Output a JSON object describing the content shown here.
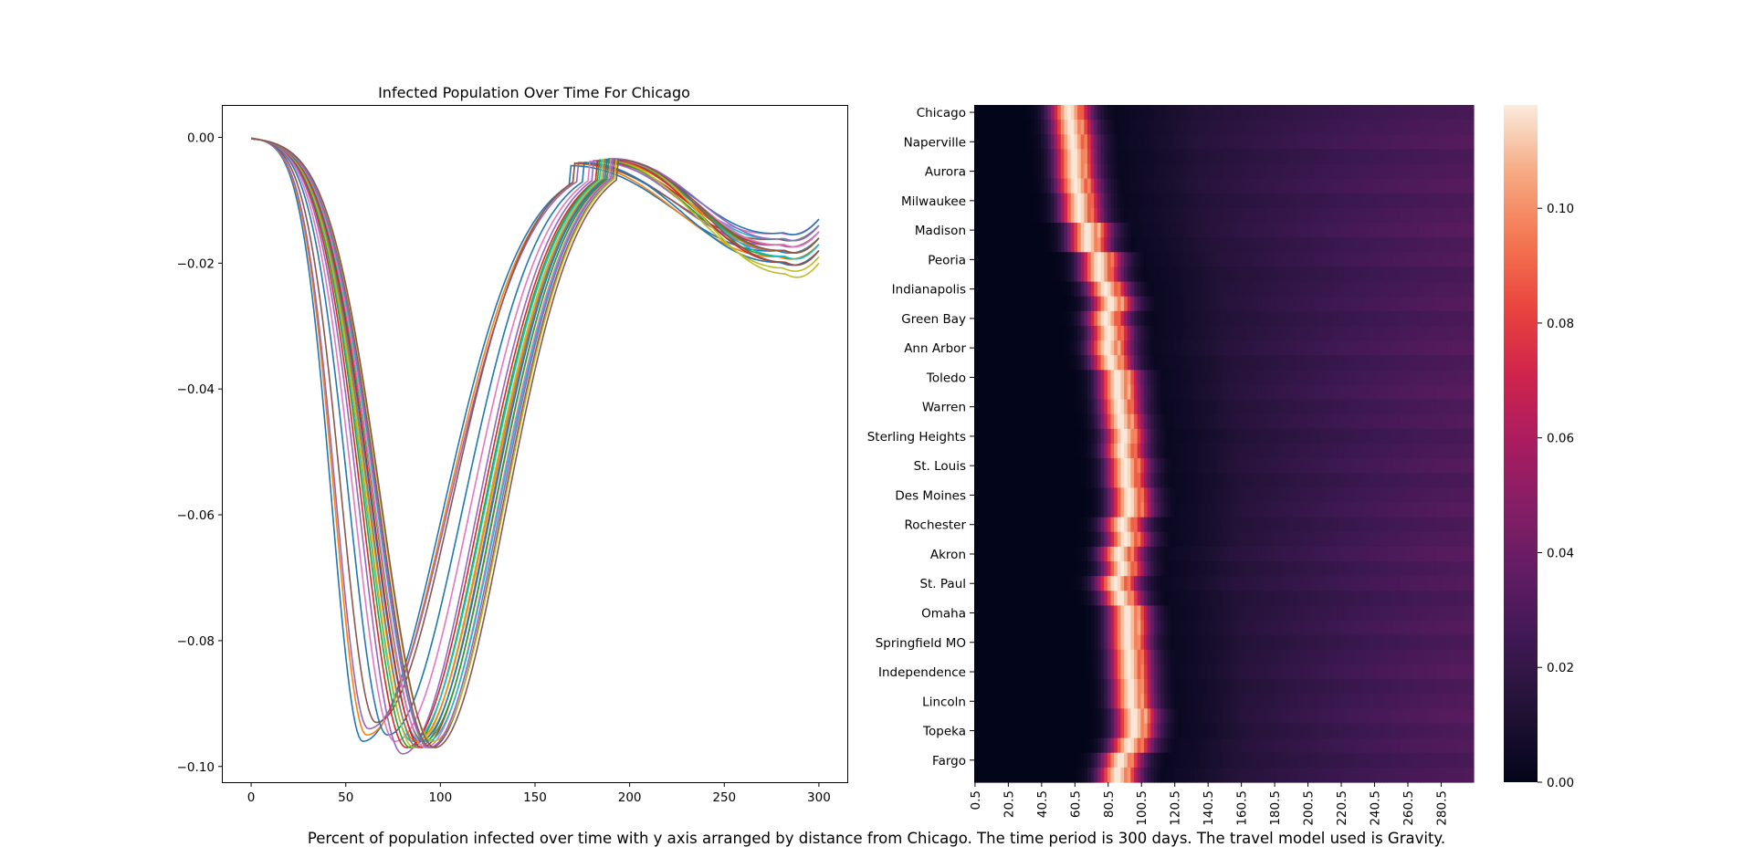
{
  "caption": "Percent of population infected over time with y axis arranged by distance from Chicago. The time period is 300 days. The travel model used is Gravity.",
  "chart_data": [
    {
      "type": "line",
      "title": "Infected Population Over Time For Chicago",
      "xlabel": "",
      "ylabel": "",
      "xlim": [
        -15,
        315
      ],
      "ylim": [
        -0.1025,
        0.005
      ],
      "x_ticks": [
        0,
        50,
        100,
        150,
        200,
        250,
        300
      ],
      "y_ticks": [
        0.0,
        -0.02,
        -0.04,
        -0.06,
        -0.08,
        -0.1
      ],
      "y_tick_labels": [
        "0.00",
        "−0.02",
        "−0.04",
        "−0.06",
        "−0.08",
        "−0.10"
      ],
      "grid": false,
      "legend": "none",
      "x_range": [
        0,
        300
      ],
      "x_step": 5,
      "series": [
        {
          "color": "#1f77b4",
          "trough_day": 59,
          "trough": -0.096,
          "plateau_day": 168,
          "plateau": -0.0045,
          "end": -0.019
        },
        {
          "color": "#ff7f0e",
          "trough_day": 61,
          "trough": -0.095,
          "plateau_day": 170,
          "plateau": -0.0042,
          "end": -0.02
        },
        {
          "color": "#9467bd",
          "trough_day": 62,
          "trough": -0.094,
          "plateau_day": 172,
          "plateau": -0.004,
          "end": -0.018
        },
        {
          "color": "#8c564b",
          "trough_day": 66,
          "trough": -0.093,
          "plateau_day": 170,
          "plateau": -0.0041,
          "end": -0.017
        },
        {
          "color": "#1f77b4",
          "trough_day": 72,
          "trough": -0.095,
          "plateau_day": 175,
          "plateau": -0.004,
          "end": -0.021
        },
        {
          "color": "#e377c2",
          "trough_day": 76,
          "trough": -0.096,
          "plateau_day": 178,
          "plateau": -0.0038,
          "end": -0.016
        },
        {
          "color": "#9467bd",
          "trough_day": 80,
          "trough": -0.098,
          "plateau_day": 180,
          "plateau": -0.0037,
          "end": -0.019
        },
        {
          "color": "#d62728",
          "trough_day": 82,
          "trough": -0.097,
          "plateau_day": 182,
          "plateau": -0.0037,
          "end": -0.018
        },
        {
          "color": "#2ca02c",
          "trough_day": 84,
          "trough": -0.097,
          "plateau_day": 183,
          "plateau": -0.0036,
          "end": -0.02
        },
        {
          "color": "#17becf",
          "trough_day": 85,
          "trough": -0.096,
          "plateau_day": 184,
          "plateau": -0.0036,
          "end": -0.017
        },
        {
          "color": "#bcbd22",
          "trough_day": 86,
          "trough": -0.097,
          "plateau_day": 185,
          "plateau": -0.0035,
          "end": -0.022
        },
        {
          "color": "#ff7f0e",
          "trough_day": 87,
          "trough": -0.096,
          "plateau_day": 186,
          "plateau": -0.0036,
          "end": -0.019
        },
        {
          "color": "#7f7f7f",
          "trough_day": 88,
          "trough": -0.097,
          "plateau_day": 186,
          "plateau": -0.0035,
          "end": -0.018
        },
        {
          "color": "#1f77b4",
          "trough_day": 89,
          "trough": -0.096,
          "plateau_day": 187,
          "plateau": -0.0035,
          "end": -0.016
        },
        {
          "color": "#d62728",
          "trough_day": 90,
          "trough": -0.097,
          "plateau_day": 188,
          "plateau": -0.0035,
          "end": -0.021
        },
        {
          "color": "#2ca02c",
          "trough_day": 91,
          "trough": -0.096,
          "plateau_day": 188,
          "plateau": -0.0034,
          "end": -0.019
        },
        {
          "color": "#e377c2",
          "trough_day": 92,
          "trough": -0.097,
          "plateau_day": 189,
          "plateau": -0.0035,
          "end": -0.018
        },
        {
          "color": "#17becf",
          "trough_day": 93,
          "trough": -0.096,
          "plateau_day": 190,
          "plateau": -0.0034,
          "end": -0.02
        },
        {
          "color": "#8c564b",
          "trough_day": 95,
          "trough": -0.097,
          "plateau_day": 191,
          "plateau": -0.0035,
          "end": -0.019
        },
        {
          "color": "#bcbd22",
          "trough_day": 96,
          "trough": -0.096,
          "plateau_day": 192,
          "plateau": -0.0034,
          "end": -0.023
        },
        {
          "color": "#9467bd",
          "trough_day": 94,
          "trough": -0.097,
          "plateau_day": 190,
          "plateau": -0.0034,
          "end": -0.017
        },
        {
          "color": "#8c564b",
          "trough_day": 97,
          "trough": -0.097,
          "plateau_day": 193,
          "plateau": -0.0036,
          "end": -0.021
        }
      ]
    },
    {
      "type": "heatmap",
      "title": "",
      "y_categories": [
        "Chicago",
        "Naperville",
        "Aurora",
        "Milwaukee",
        "Madison",
        "Peoria",
        "Indianapolis",
        "Green Bay",
        "Ann Arbor",
        "Toledo",
        "Warren",
        "Sterling Heights",
        "St. Louis",
        "Des Moines",
        "Rochester",
        "Akron",
        "St. Paul",
        "Omaha",
        "Springfield MO",
        "Independence",
        "Lincoln",
        "Topeka",
        "Fargo"
      ],
      "x_tick_labels": [
        "0.5",
        "20.5",
        "40.5",
        "60.5",
        "80.5",
        "100.5",
        "120.5",
        "140.5",
        "160.5",
        "180.5",
        "200.5",
        "220.5",
        "240.5",
        "260.5",
        "280.5"
      ],
      "rows_total": 46,
      "columns_total": 300,
      "peak_day_by_row": [
        57,
        58,
        59,
        60,
        60,
        61,
        63,
        63,
        68,
        68,
        75,
        75,
        79,
        82,
        79,
        81,
        80,
        82,
        86,
        86,
        87,
        88,
        90,
        89,
        91,
        91,
        93,
        93,
        89,
        91,
        87,
        89,
        85,
        88,
        92,
        92,
        92,
        93,
        93,
        94,
        94,
        96,
        96,
        93,
        88,
        86
      ],
      "peak_value": 0.118,
      "spread_days": 8,
      "late_value": 0.033,
      "colorbar": {
        "min": 0,
        "max": 0.118,
        "ticks": [
          0.0,
          0.02,
          0.04,
          0.06,
          0.08,
          0.1
        ],
        "tick_labels": [
          "0.00",
          "0.02",
          "0.04",
          "0.06",
          "0.08",
          "0.10"
        ],
        "colormap": "rocket"
      }
    }
  ]
}
